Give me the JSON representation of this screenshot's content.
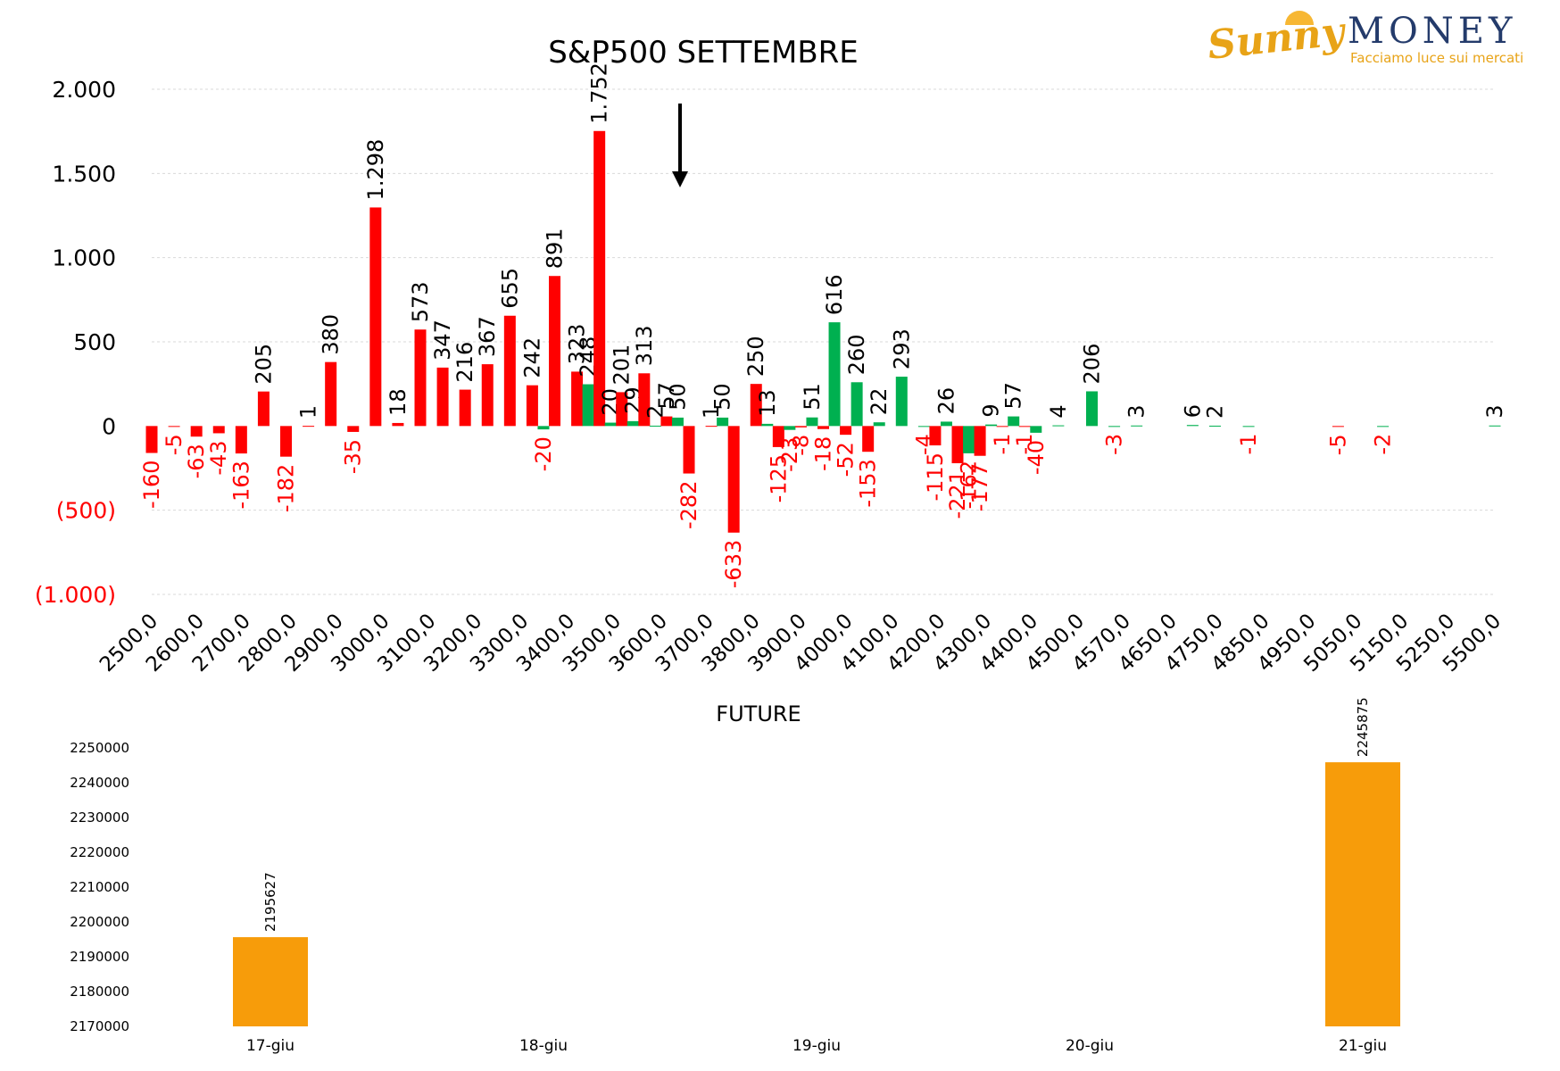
{
  "logo": {
    "brand_a": "Sunny",
    "brand_b": "MONEY",
    "tagline": "Facciamo luce sui mercati",
    "accent": "#e8a317",
    "primary": "#243b6b"
  },
  "colors": {
    "red": "#ff0000",
    "green": "#00b050",
    "orange": "#f79c0a",
    "grid": "#d9d9d9",
    "text": "#000000"
  },
  "chart_data": [
    {
      "type": "bar",
      "title": "S&P500 SETTEMBRE",
      "ylim": [
        -1000,
        2000
      ],
      "yticks": [
        {
          "value": 2000,
          "label": "2.000",
          "color": "#000000"
        },
        {
          "value": 1500,
          "label": "1.500",
          "color": "#000000"
        },
        {
          "value": 1000,
          "label": "1.000",
          "color": "#000000"
        },
        {
          "value": 500,
          "label": "500",
          "color": "#000000"
        },
        {
          "value": 0,
          "label": "0",
          "color": "#000000"
        },
        {
          "value": -500,
          "label": "(500)",
          "color": "#ff0000"
        },
        {
          "value": -1000,
          "label": "(1.000)",
          "color": "#ff0000"
        }
      ],
      "grid": true,
      "categories": [
        "2500,0",
        "2600,0",
        "2700,0",
        "2800,0",
        "2900,0",
        "3000,0",
        "3100,0",
        "3200,0",
        "3300,0",
        "3400,0",
        "3500,0",
        "3600,0",
        "3700,0",
        "3800,0",
        "3900,0",
        "4000,0",
        "4100,0",
        "4200,0",
        "4300,0",
        "4400,0",
        "4500,0",
        "4570,0",
        "4650,0",
        "4750,0",
        "4850,0",
        "4950,0",
        "5050,0",
        "5150,0",
        "5250,0",
        "5500,0"
      ],
      "bars": [
        {
          "x": 2500,
          "value": -160,
          "label": "-160",
          "color": "red"
        },
        {
          "x": 2550,
          "value": -5,
          "label": "-5",
          "color": "red"
        },
        {
          "x": 2600,
          "value": -63,
          "label": "-63",
          "color": "red"
        },
        {
          "x": 2650,
          "value": -43,
          "label": "-43",
          "color": "red"
        },
        {
          "x": 2700,
          "value": -163,
          "label": "-163",
          "color": "red"
        },
        {
          "x": 2750,
          "value": 205,
          "label": "205",
          "color": "red"
        },
        {
          "x": 2800,
          "value": -182,
          "label": "-182",
          "color": "red"
        },
        {
          "x": 2850,
          "value": 1,
          "label": "1",
          "color": "red"
        },
        {
          "x": 2900,
          "value": 380,
          "label": "380",
          "color": "red"
        },
        {
          "x": 2950,
          "value": -35,
          "label": "-35",
          "color": "red"
        },
        {
          "x": 3000,
          "value": 1298,
          "label": "1.298",
          "color": "red"
        },
        {
          "x": 3050,
          "value": 18,
          "label": "18",
          "color": "red"
        },
        {
          "x": 3100,
          "value": 573,
          "label": "573",
          "color": "red"
        },
        {
          "x": 3150,
          "value": 347,
          "label": "347",
          "color": "red"
        },
        {
          "x": 3200,
          "value": 216,
          "label": "216",
          "color": "red"
        },
        {
          "x": 3250,
          "value": 367,
          "label": "367",
          "color": "red"
        },
        {
          "x": 3300,
          "value": 655,
          "label": "655",
          "color": "red"
        },
        {
          "x": 3350,
          "value": 242,
          "label": "242",
          "color": "red"
        },
        {
          "x": 3375,
          "value": -20,
          "label": "-20",
          "color": "green"
        },
        {
          "x": 3400,
          "value": 891,
          "label": "891",
          "color": "red"
        },
        {
          "x": 3450,
          "value": 323,
          "label": "323",
          "color": "red"
        },
        {
          "x": 3475,
          "value": 248,
          "label": "248",
          "color": "green"
        },
        {
          "x": 3500,
          "value": 1752,
          "label": "1.752",
          "color": "red"
        },
        {
          "x": 3525,
          "value": 20,
          "label": "20",
          "color": "green"
        },
        {
          "x": 3550,
          "value": 201,
          "label": "201",
          "color": "red"
        },
        {
          "x": 3575,
          "value": 29,
          "label": "29",
          "color": "green"
        },
        {
          "x": 3600,
          "value": 313,
          "label": "313",
          "color": "red"
        },
        {
          "x": 3625,
          "value": 2,
          "label": "2",
          "color": "green"
        },
        {
          "x": 3650,
          "value": 57,
          "label": "57",
          "color": "red"
        },
        {
          "x": 3675,
          "value": 50,
          "label": "50",
          "color": "green"
        },
        {
          "x": 3700,
          "value": -282,
          "label": "-282",
          "color": "red"
        },
        {
          "x": 3750,
          "value": 1,
          "label": "1",
          "color": "red"
        },
        {
          "x": 3775,
          "value": 50,
          "label": "50",
          "color": "green"
        },
        {
          "x": 3800,
          "value": -633,
          "label": "-633",
          "color": "red"
        },
        {
          "x": 3850,
          "value": 250,
          "label": "250",
          "color": "red"
        },
        {
          "x": 3875,
          "value": 13,
          "label": "13",
          "color": "green"
        },
        {
          "x": 3900,
          "value": -125,
          "label": "-125",
          "color": "red"
        },
        {
          "x": 3925,
          "value": -23,
          "label": "-23",
          "color": "green"
        },
        {
          "x": 3950,
          "value": -8,
          "label": "-8",
          "color": "red"
        },
        {
          "x": 3975,
          "value": 51,
          "label": "51",
          "color": "green"
        },
        {
          "x": 4000,
          "value": -18,
          "label": "-18",
          "color": "red"
        },
        {
          "x": 4025,
          "value": 616,
          "label": "616",
          "color": "green"
        },
        {
          "x": 4050,
          "value": -52,
          "label": "-52",
          "color": "red"
        },
        {
          "x": 4075,
          "value": 260,
          "label": "260",
          "color": "green"
        },
        {
          "x": 4100,
          "value": -153,
          "label": "-153",
          "color": "red"
        },
        {
          "x": 4125,
          "value": 22,
          "label": "22",
          "color": "green"
        },
        {
          "x": 4175,
          "value": 293,
          "label": "293",
          "color": "green"
        },
        {
          "x": 4225,
          "value": -4,
          "label": "-4",
          "color": "green"
        },
        {
          "x": 4250,
          "value": -115,
          "label": "-115",
          "color": "red"
        },
        {
          "x": 4275,
          "value": 26,
          "label": "26",
          "color": "green"
        },
        {
          "x": 4300,
          "value": -221,
          "label": "-221",
          "color": "red"
        },
        {
          "x": 4325,
          "value": -162,
          "label": "-162",
          "color": "green"
        },
        {
          "x": 4350,
          "value": -177,
          "label": "-177",
          "color": "red"
        },
        {
          "x": 4375,
          "value": 9,
          "label": "9",
          "color": "green"
        },
        {
          "x": 4400,
          "value": -1,
          "label": "-1",
          "color": "red"
        },
        {
          "x": 4425,
          "value": 57,
          "label": "57",
          "color": "green"
        },
        {
          "x": 4450,
          "value": -1,
          "label": "-1",
          "color": "red"
        },
        {
          "x": 4475,
          "value": -40,
          "label": "-40",
          "color": "green"
        },
        {
          "x": 4525,
          "value": 4,
          "label": "4",
          "color": "green"
        },
        {
          "x": 4600,
          "value": 206,
          "label": "206",
          "color": "green"
        },
        {
          "x": 4650,
          "value": -3,
          "label": "-3",
          "color": "green"
        },
        {
          "x": 4700,
          "value": 3,
          "label": "3",
          "color": "green"
        },
        {
          "x": 4825,
          "value": 6,
          "label": "6",
          "color": "green"
        },
        {
          "x": 4875,
          "value": 2,
          "label": "2",
          "color": "green"
        },
        {
          "x": 4950,
          "value": -1,
          "label": "-1",
          "color": "green"
        },
        {
          "x": 5150,
          "value": -5,
          "label": "-5",
          "color": "red"
        },
        {
          "x": 5250,
          "value": -2,
          "label": "-2",
          "color": "green"
        },
        {
          "x": 5500,
          "value": 3,
          "label": "3",
          "color": "green"
        }
      ],
      "annotation": {
        "type": "arrow-down",
        "x": 3650
      }
    },
    {
      "type": "bar",
      "title": "FUTURE",
      "ylim": [
        2170000,
        2250000
      ],
      "yticks": [
        2250000,
        2240000,
        2230000,
        2220000,
        2210000,
        2200000,
        2190000,
        2180000,
        2170000
      ],
      "categories": [
        "17-giu",
        "18-giu",
        "19-giu",
        "20-giu",
        "21-giu"
      ],
      "values": [
        2195627,
        null,
        null,
        null,
        2245875
      ],
      "labels": [
        "2195627",
        "",
        "",
        "",
        "2245875"
      ],
      "color": "#f79c0a"
    }
  ]
}
